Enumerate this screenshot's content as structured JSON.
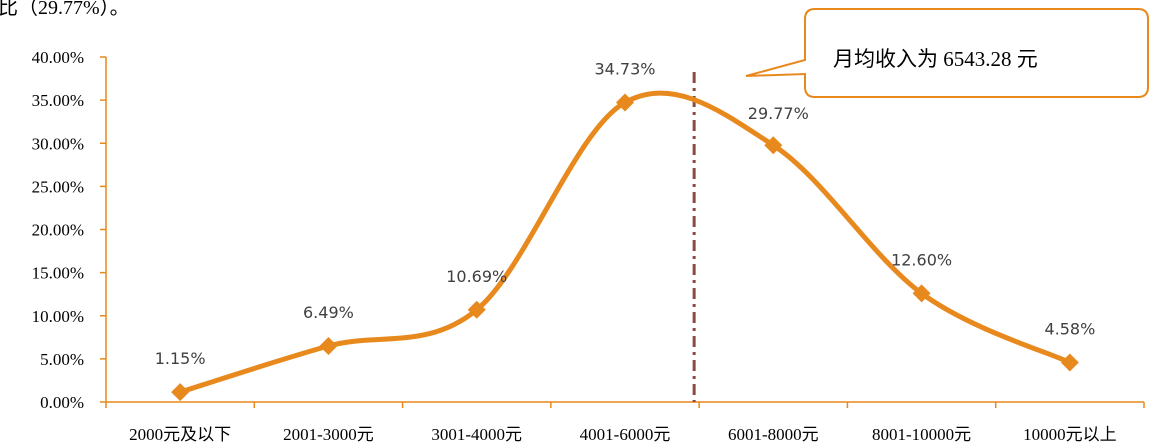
{
  "header_fragment": "比（29.77%）。",
  "chart_data": {
    "type": "line",
    "categories": [
      "2000元及以下",
      "2001-3000元",
      "3001-4000元",
      "4001-6000元",
      "6001-8000元",
      "8001-10000元",
      "10000元以上"
    ],
    "values": [
      1.15,
      6.49,
      10.69,
      34.73,
      29.77,
      12.6,
      4.58
    ],
    "data_labels": [
      "1.15%",
      "6.49%",
      "10.69%",
      "34.73%",
      "29.77%",
      "12.60%",
      "4.58%"
    ],
    "y_ticks": [
      "0.00%",
      "5.00%",
      "10.00%",
      "15.00%",
      "20.00%",
      "25.00%",
      "30.00%",
      "35.00%",
      "40.00%"
    ],
    "ylim": [
      0,
      40
    ],
    "grid": false,
    "smooth": true,
    "marker": "diamond",
    "series_color": "#E8891D",
    "axis_color": "#E8891D",
    "reference_line": {
      "position_between": [
        "4001-6000元",
        "6001-8000元"
      ],
      "style": "dash-dot",
      "color": "#8B4A3C"
    },
    "callout": {
      "text": "月均收入为 6543.28 元",
      "border_color": "#E8891D"
    }
  }
}
